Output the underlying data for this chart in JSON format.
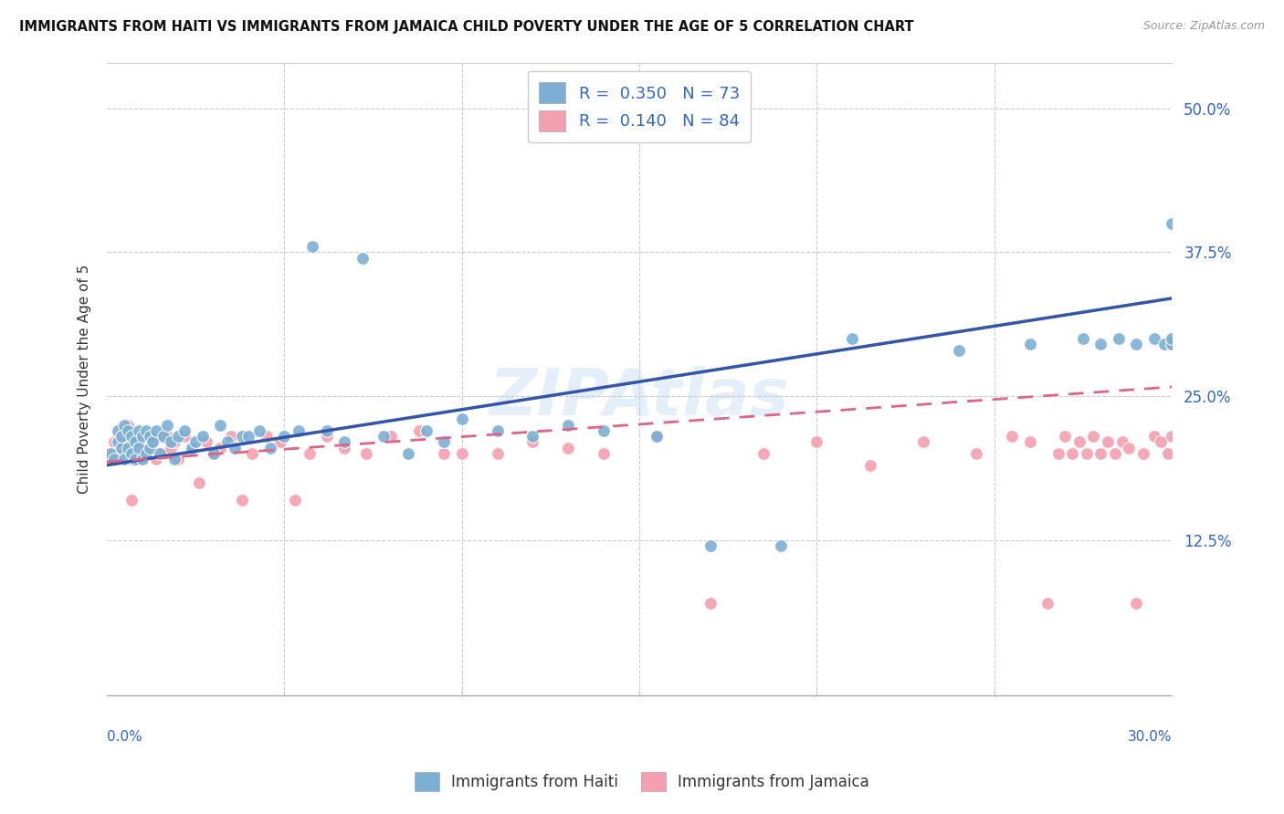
{
  "title": "IMMIGRANTS FROM HAITI VS IMMIGRANTS FROM JAMAICA CHILD POVERTY UNDER THE AGE OF 5 CORRELATION CHART",
  "source": "Source: ZipAtlas.com",
  "ylabel": "Child Poverty Under the Age of 5",
  "ytick_labels": [
    "12.5%",
    "25.0%",
    "37.5%",
    "50.0%"
  ],
  "ytick_values": [
    0.125,
    0.25,
    0.375,
    0.5
  ],
  "xlim": [
    0.0,
    0.3
  ],
  "ylim": [
    -0.01,
    0.54
  ],
  "haiti_R": 0.35,
  "haiti_N": 73,
  "jamaica_R": 0.14,
  "jamaica_N": 84,
  "haiti_color": "#7BAFD4",
  "jamaica_color": "#F4A0B0",
  "haiti_line_color": "#3355AA",
  "jamaica_line_color": "#DD6688",
  "watermark": "ZIPAtlas",
  "haiti_x": [
    0.001,
    0.002,
    0.003,
    0.003,
    0.004,
    0.004,
    0.005,
    0.005,
    0.006,
    0.006,
    0.007,
    0.007,
    0.008,
    0.008,
    0.009,
    0.009,
    0.01,
    0.01,
    0.011,
    0.011,
    0.012,
    0.012,
    0.013,
    0.014,
    0.015,
    0.016,
    0.017,
    0.018,
    0.019,
    0.02,
    0.022,
    0.024,
    0.025,
    0.027,
    0.03,
    0.032,
    0.034,
    0.036,
    0.038,
    0.04,
    0.043,
    0.046,
    0.05,
    0.054,
    0.058,
    0.062,
    0.067,
    0.072,
    0.078,
    0.085,
    0.09,
    0.095,
    0.1,
    0.11,
    0.12,
    0.13,
    0.14,
    0.155,
    0.17,
    0.19,
    0.21,
    0.24,
    0.26,
    0.275,
    0.28,
    0.285,
    0.29,
    0.295,
    0.298,
    0.3,
    0.3,
    0.3,
    0.3
  ],
  "haiti_y": [
    0.2,
    0.195,
    0.21,
    0.22,
    0.205,
    0.215,
    0.195,
    0.225,
    0.205,
    0.22,
    0.2,
    0.215,
    0.195,
    0.21,
    0.205,
    0.22,
    0.195,
    0.215,
    0.2,
    0.22,
    0.205,
    0.215,
    0.21,
    0.22,
    0.2,
    0.215,
    0.225,
    0.21,
    0.195,
    0.215,
    0.22,
    0.205,
    0.21,
    0.215,
    0.2,
    0.225,
    0.21,
    0.205,
    0.215,
    0.215,
    0.22,
    0.205,
    0.215,
    0.22,
    0.38,
    0.22,
    0.21,
    0.37,
    0.215,
    0.2,
    0.22,
    0.21,
    0.23,
    0.22,
    0.215,
    0.225,
    0.22,
    0.215,
    0.12,
    0.12,
    0.3,
    0.29,
    0.295,
    0.3,
    0.295,
    0.3,
    0.295,
    0.3,
    0.295,
    0.295,
    0.295,
    0.3,
    0.4
  ],
  "jamaica_x": [
    0.001,
    0.002,
    0.002,
    0.003,
    0.003,
    0.004,
    0.004,
    0.004,
    0.005,
    0.005,
    0.006,
    0.006,
    0.006,
    0.007,
    0.007,
    0.007,
    0.008,
    0.008,
    0.009,
    0.009,
    0.01,
    0.01,
    0.011,
    0.012,
    0.012,
    0.013,
    0.014,
    0.015,
    0.016,
    0.017,
    0.018,
    0.019,
    0.02,
    0.022,
    0.024,
    0.026,
    0.028,
    0.03,
    0.032,
    0.035,
    0.038,
    0.041,
    0.045,
    0.049,
    0.053,
    0.057,
    0.062,
    0.067,
    0.073,
    0.08,
    0.088,
    0.095,
    0.1,
    0.11,
    0.12,
    0.13,
    0.14,
    0.155,
    0.17,
    0.185,
    0.2,
    0.215,
    0.23,
    0.245,
    0.255,
    0.26,
    0.265,
    0.268,
    0.27,
    0.272,
    0.274,
    0.276,
    0.278,
    0.28,
    0.282,
    0.284,
    0.286,
    0.288,
    0.29,
    0.292,
    0.295,
    0.297,
    0.299,
    0.3
  ],
  "jamaica_y": [
    0.195,
    0.2,
    0.21,
    0.195,
    0.215,
    0.2,
    0.21,
    0.22,
    0.195,
    0.215,
    0.2,
    0.21,
    0.225,
    0.195,
    0.215,
    0.16,
    0.2,
    0.215,
    0.195,
    0.21,
    0.2,
    0.215,
    0.2,
    0.215,
    0.205,
    0.21,
    0.195,
    0.215,
    0.2,
    0.215,
    0.205,
    0.21,
    0.195,
    0.215,
    0.205,
    0.175,
    0.21,
    0.2,
    0.205,
    0.215,
    0.16,
    0.2,
    0.215,
    0.21,
    0.16,
    0.2,
    0.215,
    0.205,
    0.2,
    0.215,
    0.22,
    0.2,
    0.2,
    0.2,
    0.21,
    0.205,
    0.2,
    0.215,
    0.07,
    0.2,
    0.21,
    0.19,
    0.21,
    0.2,
    0.215,
    0.21,
    0.07,
    0.2,
    0.215,
    0.2,
    0.21,
    0.2,
    0.215,
    0.2,
    0.21,
    0.2,
    0.21,
    0.205,
    0.07,
    0.2,
    0.215,
    0.21,
    0.2,
    0.215
  ],
  "haiti_line_x": [
    0.0,
    0.3
  ],
  "haiti_line_y": [
    0.19,
    0.335
  ],
  "jamaica_line_x": [
    0.0,
    0.3
  ],
  "jamaica_line_y": [
    0.193,
    0.258
  ]
}
